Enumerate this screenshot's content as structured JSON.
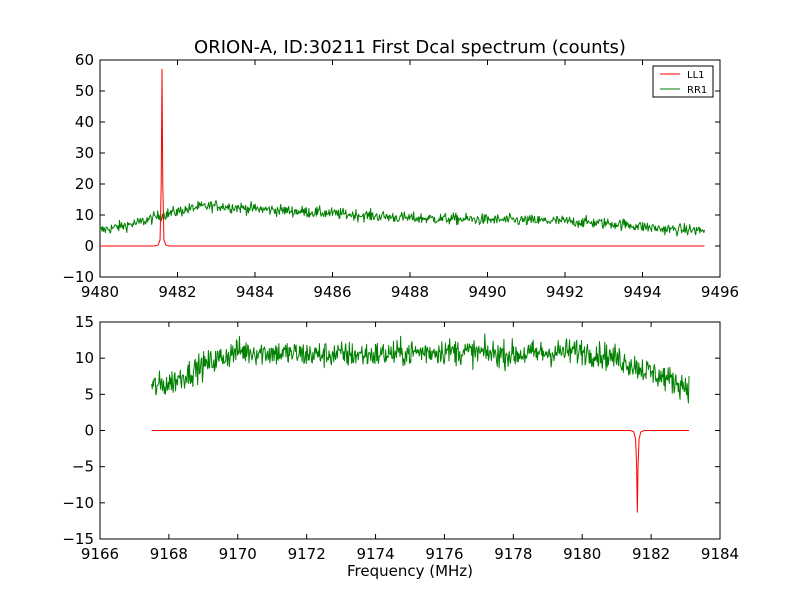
{
  "title": "ORION-A, ID:30211 First Dcal spectrum (counts)",
  "colors": {
    "LL1": "#ff0000",
    "RR1": "#008000",
    "axes": "#000000",
    "background": "#ffffff"
  },
  "chart_data": [
    {
      "type": "line",
      "title": "ORION-A, ID:30211 First Dcal spectrum (counts)",
      "xlabel": "",
      "ylabel": "",
      "xlim": [
        9480,
        9496
      ],
      "ylim": [
        -10,
        60
      ],
      "xticks": [
        "9480",
        "9482",
        "9484",
        "9486",
        "9488",
        "9490",
        "9492",
        "9494",
        "9496"
      ],
      "yticks": [
        "60",
        "50",
        "40",
        "30",
        "20",
        "10",
        "0",
        "−10"
      ],
      "grid": false,
      "legend": {
        "position": "top-right",
        "entries": [
          "LL1",
          "RR1"
        ]
      },
      "series": [
        {
          "name": "LL1",
          "color": "#ff0000",
          "x": [
            9480.0,
            9481.4,
            9481.5,
            9481.55,
            9481.58,
            9481.6,
            9481.62,
            9481.65,
            9481.7,
            9481.8,
            9482.0,
            9495.6
          ],
          "y": [
            0,
            0,
            0.3,
            2,
            20,
            57,
            20,
            2,
            0.3,
            0,
            0,
            0
          ]
        },
        {
          "name": "RR1",
          "color": "#008000",
          "noise": 1.3,
          "x": [
            9480.0,
            9481.0,
            9481.6,
            9482.5,
            9483.0,
            9484.0,
            9486.0,
            9488.0,
            9490.0,
            9492.0,
            9493.5,
            9494.5,
            9495.6
          ],
          "y": [
            5,
            7.5,
            10,
            12.5,
            13,
            12,
            10.5,
            9,
            8.5,
            8,
            7,
            5.5,
            5
          ]
        }
      ]
    },
    {
      "type": "line",
      "title": "",
      "xlabel": "Frequency (MHz)",
      "ylabel": "",
      "xlim": [
        9166,
        9184
      ],
      "ylim": [
        -15,
        15
      ],
      "xticks": [
        "9166",
        "9168",
        "9170",
        "9172",
        "9174",
        "9176",
        "9178",
        "9180",
        "9182",
        "9184"
      ],
      "yticks": [
        "15",
        "10",
        "5",
        "0",
        "−5",
        "−10",
        "−15"
      ],
      "grid": false,
      "series": [
        {
          "name": "LL1",
          "color": "#ff0000",
          "x": [
            9167.5,
            9181.4,
            9181.5,
            9181.55,
            9181.58,
            9181.6,
            9181.62,
            9181.65,
            9181.7,
            9181.8,
            9183.1
          ],
          "y": [
            0,
            0,
            -0.2,
            -1.2,
            -5,
            -11.3,
            -5,
            -1.2,
            -0.2,
            0,
            0
          ]
        },
        {
          "name": "RR1",
          "color": "#008000",
          "noise": 1.3,
          "x": [
            9167.5,
            9168.0,
            9169.0,
            9170.0,
            9172.0,
            9174.0,
            9176.0,
            9178.0,
            9180.0,
            9181.0,
            9182.0,
            9183.1
          ],
          "y": [
            6,
            6.5,
            9,
            11,
            10.5,
            10.5,
            11,
            10.5,
            11,
            10,
            8,
            6
          ]
        }
      ]
    }
  ]
}
